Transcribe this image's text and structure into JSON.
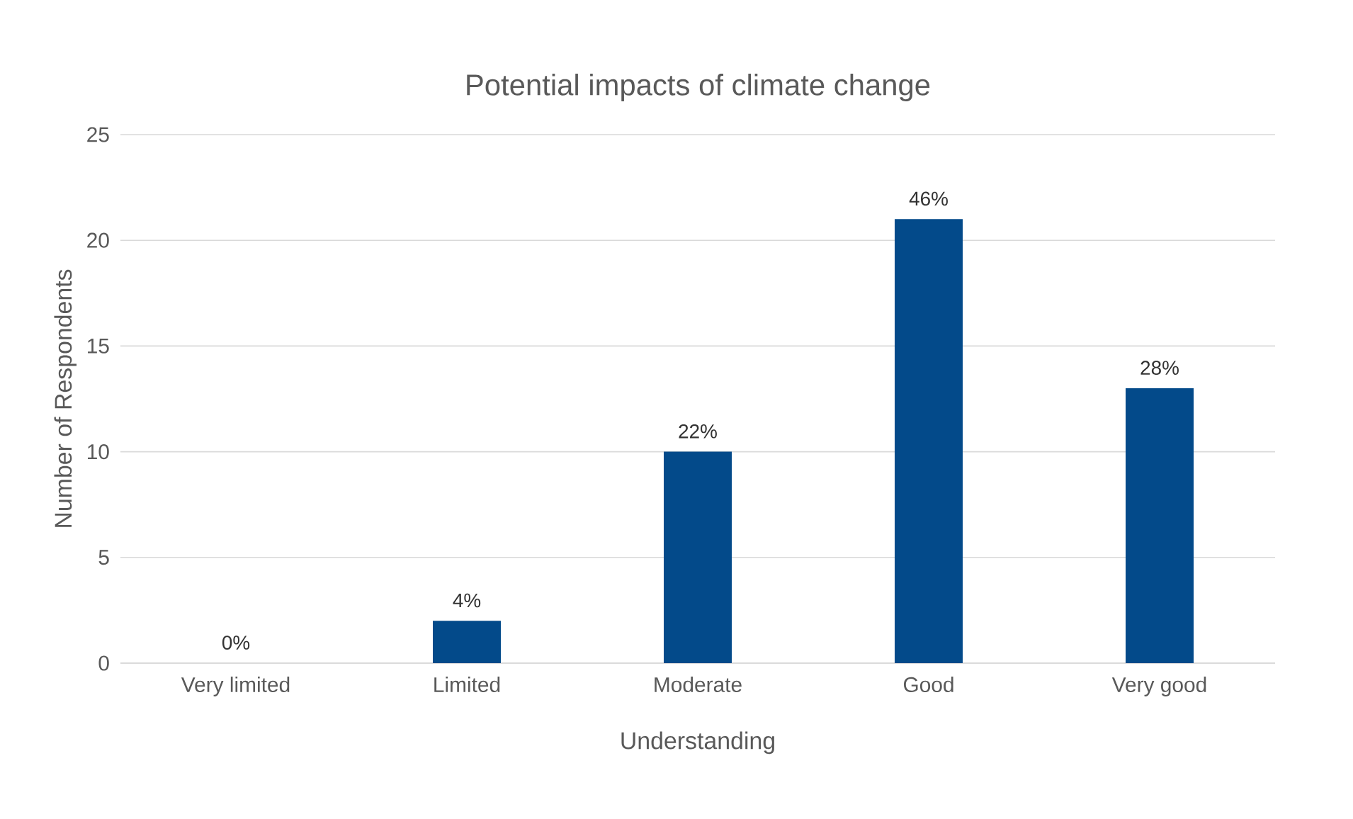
{
  "chart_data": {
    "type": "bar",
    "title": "Potential impacts of climate change",
    "xlabel": "Understanding",
    "ylabel": "Number of Respondents",
    "categories": [
      "Very limited",
      "Limited",
      "Moderate",
      "Good",
      "Very good"
    ],
    "values": [
      0,
      2,
      10,
      21,
      13
    ],
    "annotations": [
      {
        "text": "0%",
        "x": "Very limited",
        "y": 0
      },
      {
        "text": "4%",
        "x": "Limited",
        "y": 2
      },
      {
        "text": "22%",
        "x": "Moderate",
        "y": 10
      },
      {
        "text": "46%",
        "x": "Good",
        "y": 21
      },
      {
        "text": "28%",
        "x": "Very good",
        "y": 13
      }
    ],
    "color": "#034a8a",
    "ylim": [
      0,
      25
    ],
    "yticks": [
      0,
      5,
      10,
      15,
      20,
      25
    ],
    "grid": "y"
  }
}
